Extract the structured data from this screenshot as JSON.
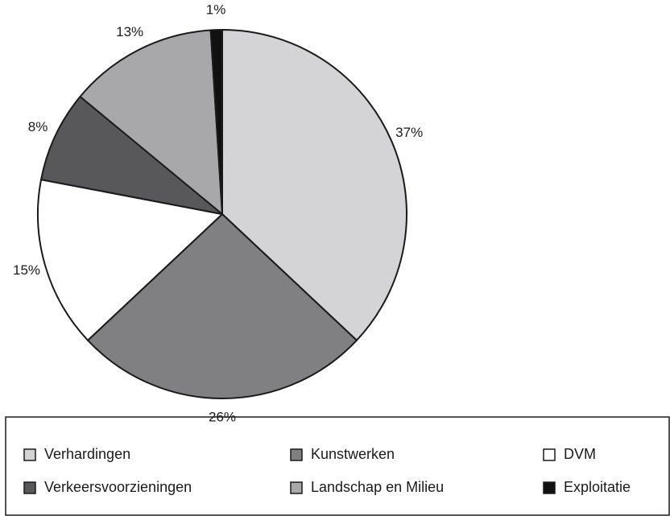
{
  "chart_data": {
    "type": "pie",
    "categories": [
      "Verhardingen",
      "Kunstwerken",
      "DVM",
      "Verkeersvoorzieningen",
      "Landschap en Milieu",
      "Exploitatie"
    ],
    "values": [
      37,
      26,
      15,
      8,
      13,
      1
    ],
    "value_labels": [
      "37%",
      "26%",
      "15%",
      "8%",
      "13%",
      "1%"
    ],
    "colors": [
      "#d4d4d6",
      "#808083",
      "#ffffff",
      "#58585a",
      "#a8a8aa",
      "#111111"
    ]
  }
}
